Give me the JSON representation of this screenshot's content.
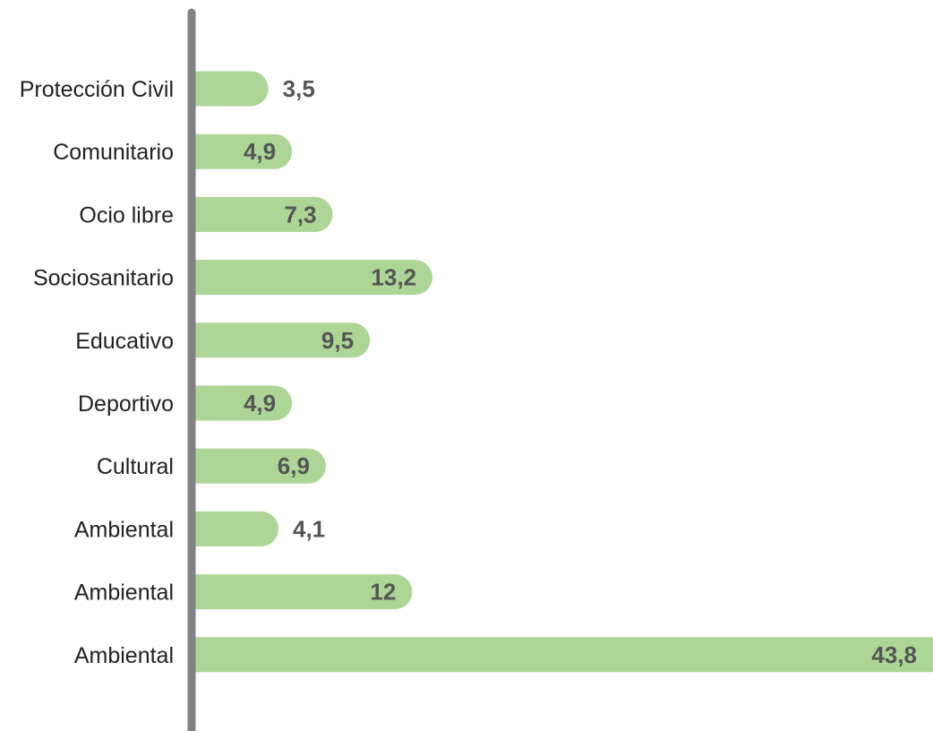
{
  "chart_data": {
    "type": "bar",
    "orientation": "horizontal",
    "title": "",
    "xlabel": "",
    "ylabel": "",
    "categories": [
      "Protección Civil",
      "Comunitario",
      "Ocio libre",
      "Sociosanitario",
      "Educativo",
      "Deportivo",
      "Cultural",
      "Ambiental",
      "Ambiental",
      "Ambiental"
    ],
    "values": [
      3.5,
      4.9,
      7.3,
      13.2,
      9.5,
      4.9,
      6.9,
      4.1,
      12,
      43.8
    ],
    "value_labels": [
      "3,5",
      "4,9",
      "7,3",
      "13,2",
      "9,5",
      "4,9",
      "6,9",
      "4,1",
      "12",
      "43,8"
    ],
    "xlim": [
      0,
      43.8
    ],
    "grid": false,
    "legend": "none",
    "colors": {
      "bar": "#acd596",
      "axis": "#808285",
      "label_text": "#222222",
      "value_text": "#555555"
    }
  }
}
